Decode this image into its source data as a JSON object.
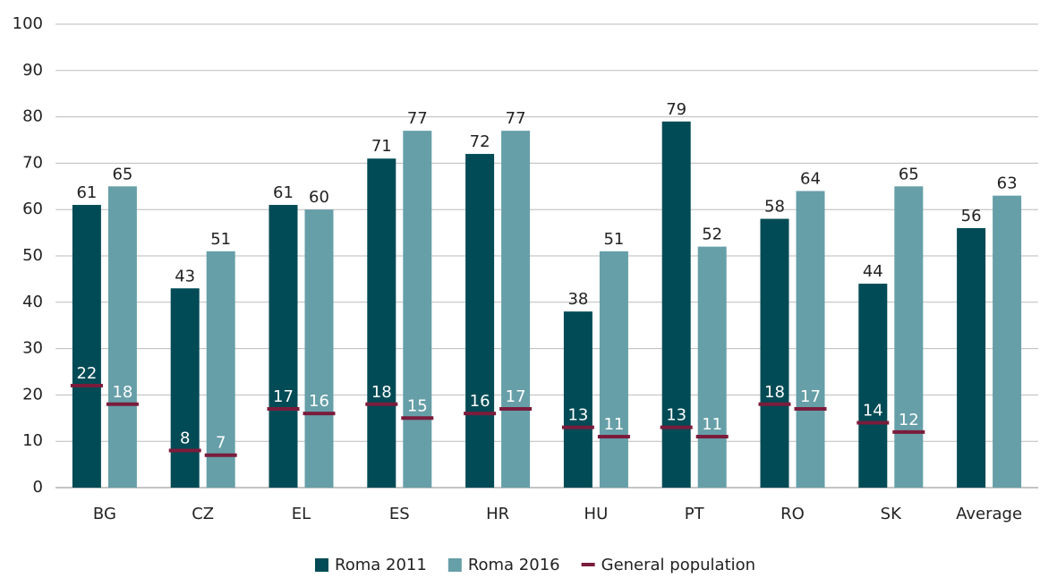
{
  "chart_data": {
    "type": "bar",
    "categories": [
      "BG",
      "CZ",
      "EL",
      "ES",
      "HR",
      "HU",
      "PT",
      "RO",
      "SK",
      "Average"
    ],
    "series": [
      {
        "name": "Roma 2011",
        "color": "#004b55",
        "values": [
          61,
          43,
          61,
          71,
          72,
          38,
          79,
          58,
          44,
          56
        ]
      },
      {
        "name": "Roma 2016",
        "color": "#669fa8",
        "values": [
          65,
          51,
          60,
          77,
          77,
          51,
          52,
          64,
          65,
          63
        ]
      },
      {
        "name": "General population",
        "color": "#7b1c3c",
        "values": [
          [
            22,
            18
          ],
          [
            8,
            7
          ],
          [
            17,
            16
          ],
          [
            18,
            15
          ],
          [
            16,
            17
          ],
          [
            13,
            11
          ],
          [
            13,
            11
          ],
          [
            18,
            17
          ],
          [
            14,
            12
          ],
          null
        ]
      }
    ],
    "ylim": [
      0,
      100
    ],
    "yticks": [
      0,
      10,
      20,
      30,
      40,
      50,
      60,
      70,
      80,
      90,
      100
    ],
    "grid": true,
    "legend": "bottom"
  }
}
